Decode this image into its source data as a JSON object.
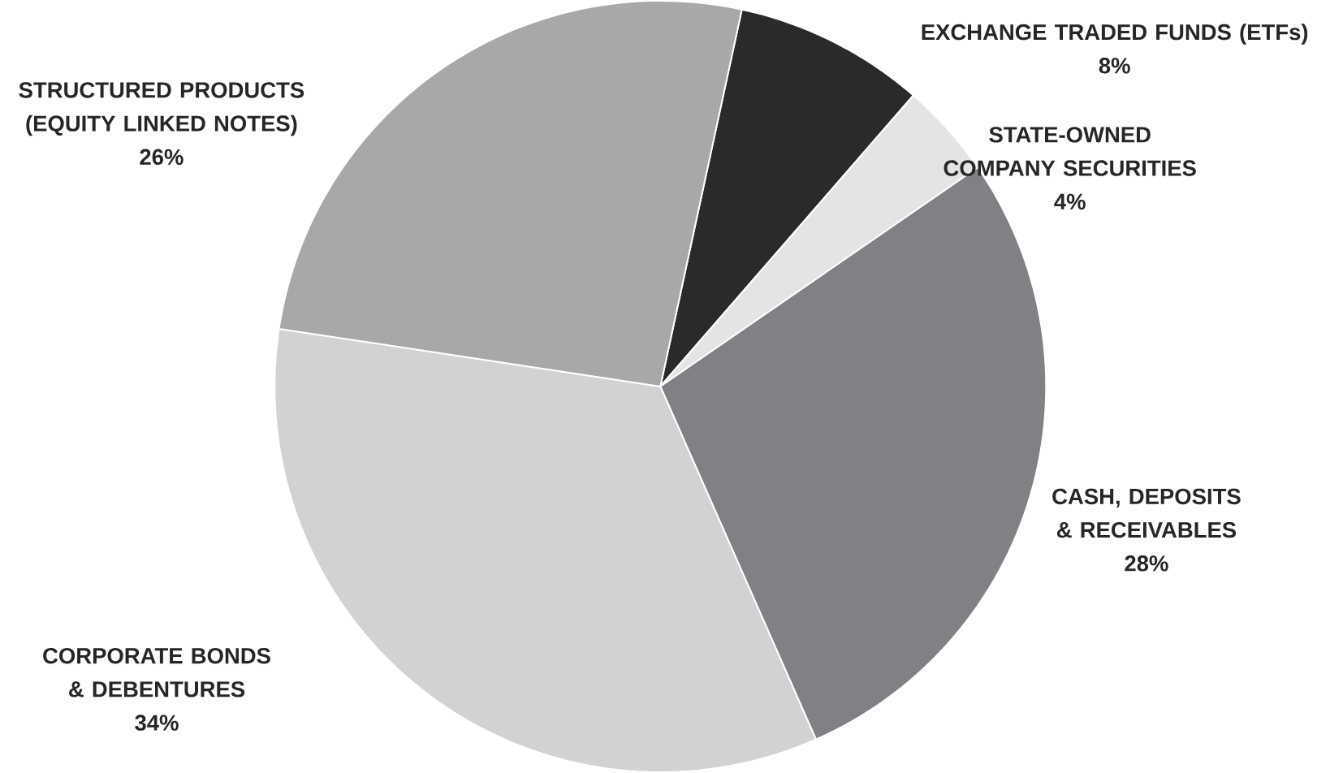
{
  "chart_data": {
    "type": "pie",
    "categories": [
      "EXCHANGE TRADED FUNDS (ETFs)",
      "STATE-OWNED COMPANY SECURITIES",
      "CASH, DEPOSITS & RECEIVABLES",
      "CORPORATE BONDS & DEBENTURES",
      "STRUCTURED PRODUCTS (EQUITY LINKED NOTES)"
    ],
    "values": [
      8,
      4,
      28,
      34,
      26
    ],
    "value_labels": [
      "8%",
      "4%",
      "28%",
      "34%",
      "26%"
    ],
    "colors": [
      "#2b2a2b",
      "#e4e4e5",
      "#808184",
      "#d1d2d4",
      "#a7a8aa"
    ]
  }
}
